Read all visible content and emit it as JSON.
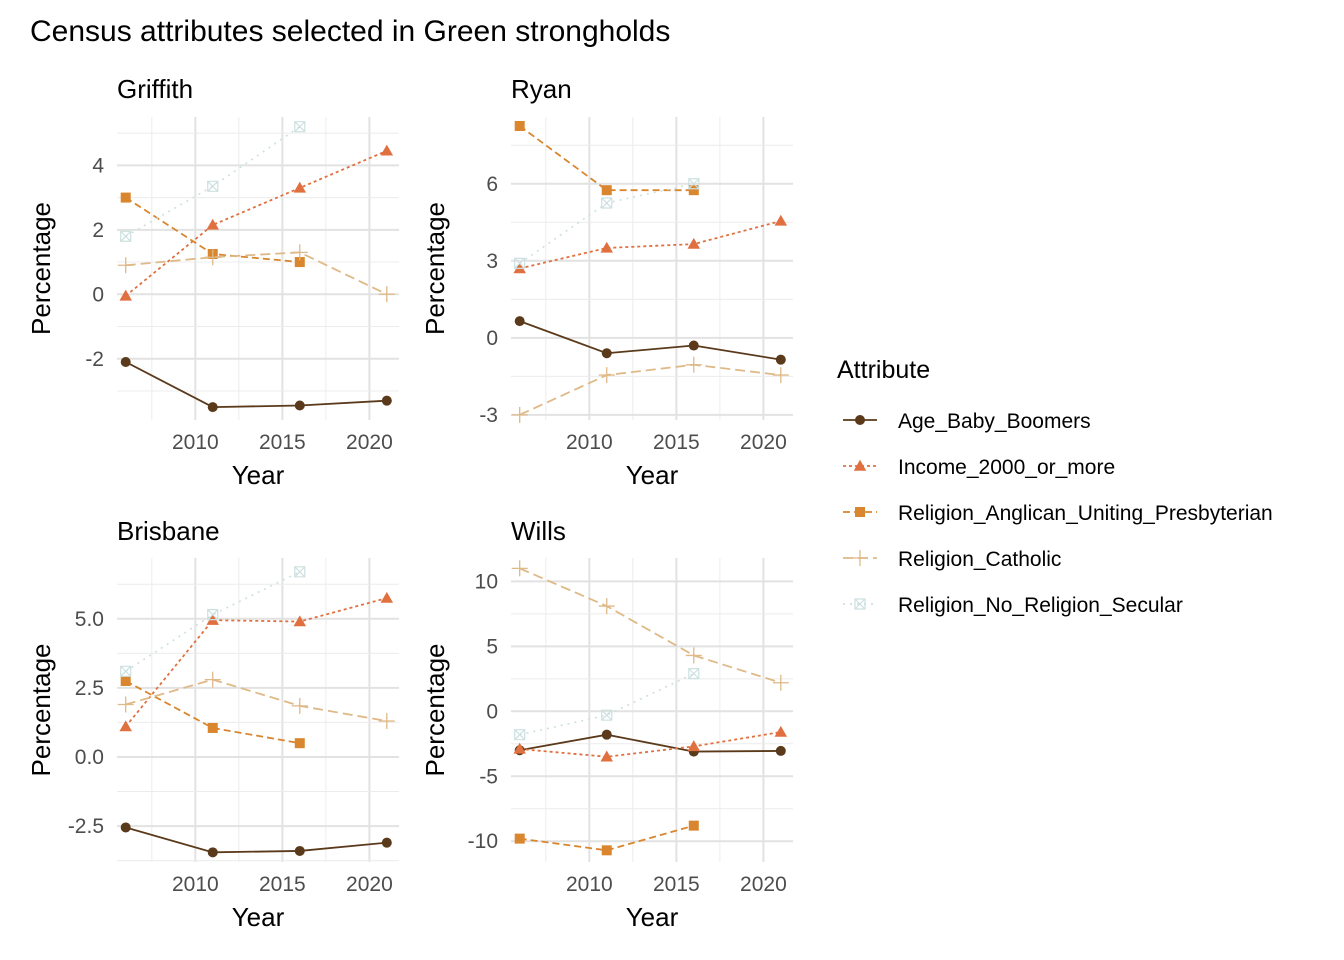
{
  "title": "Census attributes selected in Green strongholds",
  "legend_title": "Attribute",
  "legend_position": "right",
  "series_styles": [
    {
      "name": "Age_Baby_Boomers",
      "color": "#5a3a1a",
      "dash": "",
      "marker": "circle"
    },
    {
      "name": "Income_2000_or_more",
      "color": "#e07040",
      "dash": "3,3",
      "marker": "triangle"
    },
    {
      "name": "Religion_Anglican_Uniting_Presbyterian",
      "color": "#d9862f",
      "dash": "7,4",
      "marker": "square"
    },
    {
      "name": "Religion_Catholic",
      "color": "#dfb987",
      "dash": "10,5",
      "marker": "plus"
    },
    {
      "name": "Religion_No_Religion_Secular",
      "color": "#cde0e0",
      "dash": "2,5",
      "marker": "crossbox"
    }
  ],
  "chart_data": [
    {
      "type": "line",
      "title": "Griffith",
      "xlabel": "Year",
      "ylabel": "Percentage",
      "xlim": [
        2005.5,
        2021.7
      ],
      "ylim": [
        -3.9,
        5.5
      ],
      "xticks": [
        2010,
        2015,
        2020
      ],
      "yticks": [
        -2,
        0,
        2,
        4
      ],
      "yticklabels": [
        "-2",
        "0",
        "2",
        "4"
      ],
      "grid": true,
      "series": [
        {
          "name": "Age_Baby_Boomers",
          "x": [
            2006,
            2011,
            2016,
            2021
          ],
          "y": [
            -2.1,
            -3.5,
            -3.45,
            -3.3
          ]
        },
        {
          "name": "Income_2000_or_more",
          "x": [
            2006,
            2011,
            2016,
            2021
          ],
          "y": [
            -0.05,
            2.15,
            3.3,
            4.45
          ]
        },
        {
          "name": "Religion_Anglican_Uniting_Presbyterian",
          "x": [
            2006,
            2011,
            2016
          ],
          "y": [
            3.0,
            1.25,
            1.0
          ]
        },
        {
          "name": "Religion_Catholic",
          "x": [
            2006,
            2011,
            2016,
            2021
          ],
          "y": [
            0.9,
            1.15,
            1.3,
            0.0
          ]
        },
        {
          "name": "Religion_No_Religion_Secular",
          "x": [
            2006,
            2011,
            2016
          ],
          "y": [
            1.8,
            3.35,
            5.2
          ]
        }
      ]
    },
    {
      "type": "line",
      "title": "Ryan",
      "xlabel": "Year",
      "ylabel": "Percentage",
      "xlim": [
        2005.5,
        2021.7
      ],
      "ylim": [
        -3.2,
        8.6
      ],
      "xticks": [
        2010,
        2015,
        2020
      ],
      "yticks": [
        -3,
        0,
        3,
        6
      ],
      "yticklabels": [
        "-3",
        "0",
        "3",
        "6"
      ],
      "grid": true,
      "series": [
        {
          "name": "Age_Baby_Boomers",
          "x": [
            2006,
            2011,
            2016,
            2021
          ],
          "y": [
            0.65,
            -0.6,
            -0.3,
            -0.85
          ]
        },
        {
          "name": "Income_2000_or_more",
          "x": [
            2006,
            2011,
            2016,
            2021
          ],
          "y": [
            2.7,
            3.5,
            3.65,
            4.55
          ]
        },
        {
          "name": "Religion_Anglican_Uniting_Presbyterian",
          "x": [
            2006,
            2011,
            2016
          ],
          "y": [
            8.25,
            5.75,
            5.75
          ]
        },
        {
          "name": "Religion_Catholic",
          "x": [
            2006,
            2011,
            2016,
            2021
          ],
          "y": [
            -3.0,
            -1.45,
            -1.05,
            -1.45
          ]
        },
        {
          "name": "Religion_No_Religion_Secular",
          "x": [
            2006,
            2011,
            2016
          ],
          "y": [
            2.9,
            5.25,
            6.0
          ]
        }
      ]
    },
    {
      "type": "line",
      "title": "Brisbane",
      "xlabel": "Year",
      "ylabel": "Percentage",
      "xlim": [
        2005.5,
        2021.7
      ],
      "ylim": [
        -3.8,
        7.2
      ],
      "xticks": [
        2010,
        2015,
        2020
      ],
      "yticks": [
        -2.5,
        0,
        2.5,
        5
      ],
      "yticklabels": [
        "-2.5",
        "0.0",
        "2.5",
        "5.0"
      ],
      "grid": true,
      "series": [
        {
          "name": "Age_Baby_Boomers",
          "x": [
            2006,
            2011,
            2016,
            2021
          ],
          "y": [
            -2.55,
            -3.45,
            -3.4,
            -3.1
          ]
        },
        {
          "name": "Income_2000_or_more",
          "x": [
            2006,
            2011,
            2016,
            2021
          ],
          "y": [
            1.1,
            4.95,
            4.9,
            5.75
          ]
        },
        {
          "name": "Religion_Anglican_Uniting_Presbyterian",
          "x": [
            2006,
            2011,
            2016
          ],
          "y": [
            2.75,
            1.05,
            0.5
          ]
        },
        {
          "name": "Religion_Catholic",
          "x": [
            2006,
            2011,
            2016,
            2021
          ],
          "y": [
            1.9,
            2.8,
            1.85,
            1.3
          ]
        },
        {
          "name": "Religion_No_Religion_Secular",
          "x": [
            2006,
            2011,
            2016
          ],
          "y": [
            3.1,
            5.15,
            6.7
          ]
        }
      ]
    },
    {
      "type": "line",
      "title": "Wills",
      "xlabel": "Year",
      "ylabel": "Percentage",
      "xlim": [
        2005.5,
        2021.7
      ],
      "ylim": [
        -11.6,
        11.8
      ],
      "xticks": [
        2010,
        2015,
        2020
      ],
      "yticks": [
        -10,
        -5,
        0,
        5,
        10
      ],
      "yticklabels": [
        "-10",
        "-5",
        "0",
        "5",
        "10"
      ],
      "grid": true,
      "series": [
        {
          "name": "Age_Baby_Boomers",
          "x": [
            2006,
            2011,
            2016,
            2021
          ],
          "y": [
            -3.0,
            -1.8,
            -3.1,
            -3.05
          ]
        },
        {
          "name": "Income_2000_or_more",
          "x": [
            2006,
            2011,
            2016,
            2021
          ],
          "y": [
            -2.9,
            -3.5,
            -2.7,
            -1.6
          ]
        },
        {
          "name": "Religion_Anglican_Uniting_Presbyterian",
          "x": [
            2006,
            2011,
            2016
          ],
          "y": [
            -9.8,
            -10.7,
            -8.8
          ]
        },
        {
          "name": "Religion_Catholic",
          "x": [
            2006,
            2011,
            2016,
            2021
          ],
          "y": [
            11.0,
            8.1,
            4.3,
            2.2
          ]
        },
        {
          "name": "Religion_No_Religion_Secular",
          "x": [
            2006,
            2011,
            2016
          ],
          "y": [
            -1.8,
            -0.3,
            2.9
          ]
        }
      ]
    }
  ]
}
